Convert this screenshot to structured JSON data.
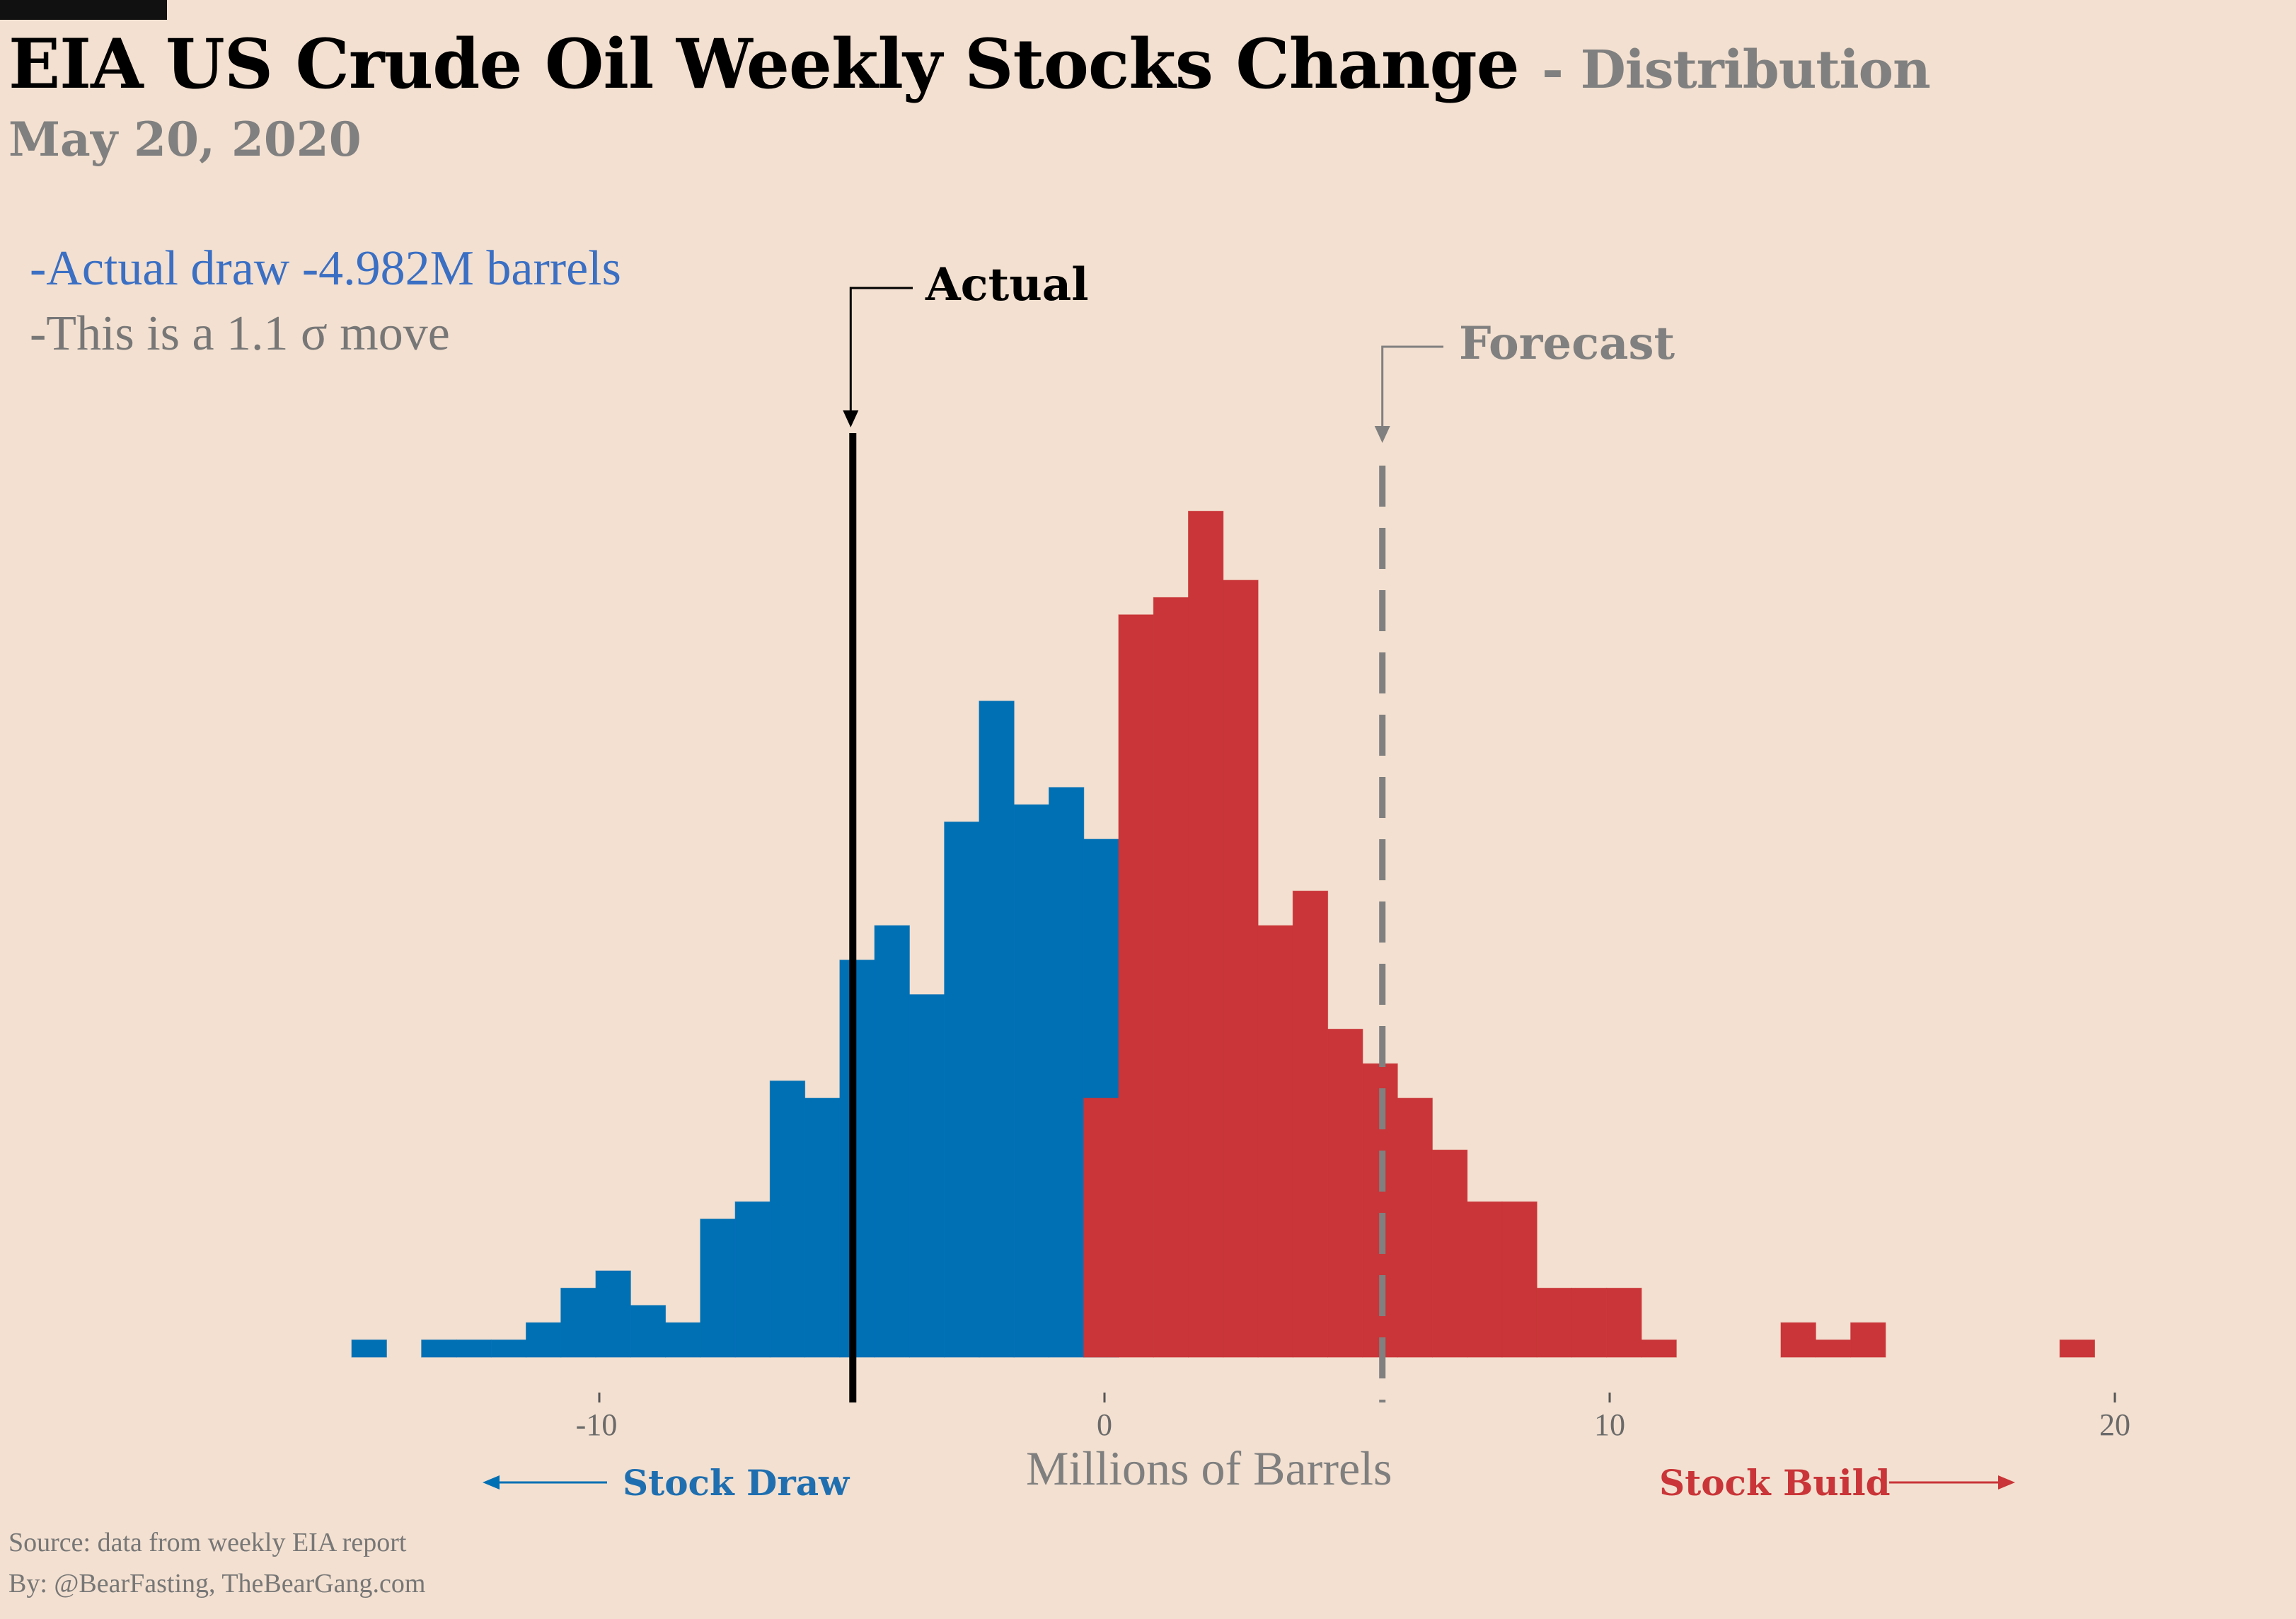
{
  "header": {
    "title": "EIA US Crude Oil Weekly Stocks Change",
    "title_suffix": "- Distribution",
    "date": "May 20, 2020"
  },
  "notes": {
    "line1": "-Actual draw -4.982M barrels",
    "line2": "-This is a 1.1 σ move"
  },
  "annotations": {
    "actual_label": "Actual",
    "forecast_label": "Forecast"
  },
  "footer": {
    "source": "Source: data from  weekly EIA report",
    "by": "By: @BearFasting, TheBearGang.com"
  },
  "colors": {
    "background": "#f3e0d0",
    "draw": "#0070b5",
    "build": "#c93538",
    "actual_line": "#000000",
    "forecast_line": "#808080"
  },
  "chart_data": {
    "type": "bar",
    "xlabel": "Millions of Barrels",
    "ylabel": "",
    "xlim": [
      -15.5,
      20.5
    ],
    "x_ticks": [
      -10,
      0,
      10,
      20
    ],
    "tick_labels": [
      "-10",
      "0",
      "10",
      "20"
    ],
    "direction_labels": {
      "left": "Stock Draw",
      "right": "Stock Build"
    },
    "grid": false,
    "bin_width": 0.69,
    "series": [
      {
        "color": "#0070b5",
        "bins_start": [
          -14.9,
          -13.52,
          -12.83,
          -12.14,
          -11.45,
          -10.76,
          -10.07,
          -9.38,
          -8.69,
          -8.0,
          -7.31,
          -6.62,
          -5.93,
          -5.24,
          -4.55,
          -3.86,
          -3.17,
          -2.48,
          -1.79,
          -1.1,
          -0.41
        ],
        "counts": [
          1,
          1,
          1,
          1,
          2,
          4,
          5,
          3,
          2,
          8,
          9,
          16,
          15,
          23,
          25,
          21,
          31,
          38,
          32,
          33,
          30
        ]
      },
      {
        "color": "#c93538",
        "bins_start": [
          -0.41,
          0.28,
          0.97,
          1.66,
          2.35,
          3.04,
          3.73,
          4.42,
          5.11,
          5.8,
          6.49,
          7.18,
          7.87,
          8.56,
          9.25,
          9.94,
          10.63,
          13.39,
          14.08,
          14.77,
          18.91
        ],
        "counts": [
          15,
          43,
          44,
          49,
          45,
          25,
          27,
          19,
          17,
          15,
          12,
          9,
          9,
          4,
          4,
          4,
          1,
          2,
          1,
          2,
          1
        ]
      }
    ],
    "count_max": 50,
    "vlines": [
      {
        "label": "Actual",
        "x": -4.982,
        "style": "solid",
        "color": "#000000"
      },
      {
        "label": "Forecast",
        "x": 5.5,
        "style": "dashed",
        "color": "#808080"
      }
    ]
  }
}
